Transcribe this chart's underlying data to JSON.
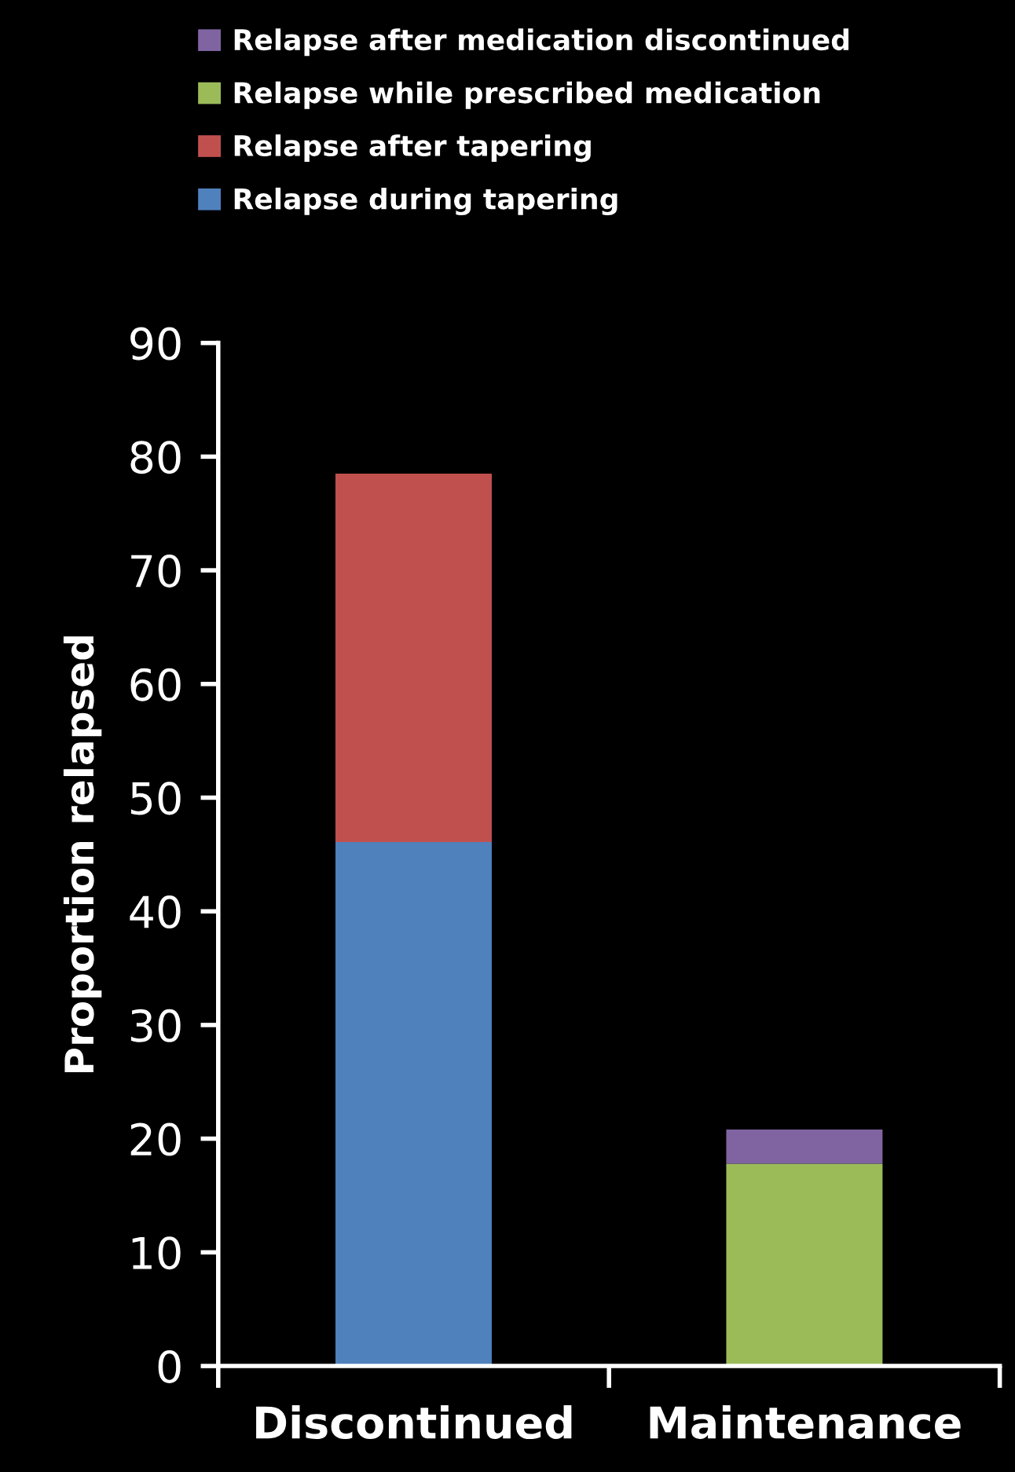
{
  "chart_data": {
    "type": "bar",
    "stacked": true,
    "ylabel": "Proportion relapsed",
    "categories": [
      "Discontinued",
      "Maintenance"
    ],
    "series": [
      {
        "name": "Relapse during tapering",
        "color": "#4f81bd",
        "values": [
          46.1,
          null
        ]
      },
      {
        "name": "Relapse after tapering",
        "color": "#c0504d",
        "values": [
          32.4,
          null
        ]
      },
      {
        "name": "Relapse while prescribed medication",
        "color": "#9bbb59",
        "values": [
          null,
          17.8
        ]
      },
      {
        "name": "Relapse after medication discontinued",
        "color": "#8064a2",
        "values": [
          null,
          3.0
        ]
      }
    ],
    "ylim": [
      0,
      90
    ],
    "yticks": [
      0,
      10,
      20,
      30,
      40,
      50,
      60,
      70,
      80,
      90
    ],
    "grid": false,
    "legend": "top"
  }
}
